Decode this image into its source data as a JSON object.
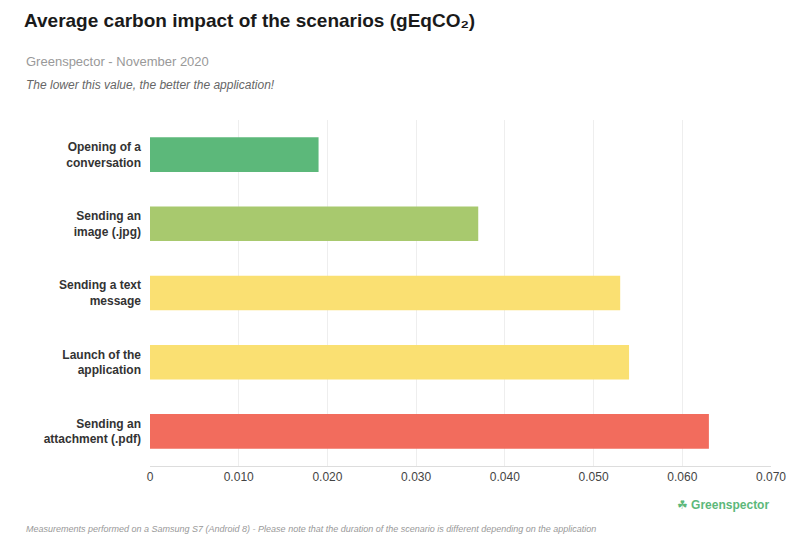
{
  "chart_data": {
    "type": "bar",
    "orientation": "horizontal",
    "title": "Average carbon impact of the scenarios (gEqCO₂)",
    "subtitle": "Greenspector - November 2020",
    "annotations": [
      "The lower this value, the better the application!",
      "Measurements performed on a Samsung S7 (Android 8) - Please note that the duration of the scenario is different depending on the application",
      "☘",
      "Greenspector"
    ],
    "categories": [
      "Opening of a\nconversation",
      "Sending an\nimage (.jpg)",
      "Sending a text\nmessage",
      "Launch of the\napplication",
      "Sending an\nattachment (.pdf)"
    ],
    "values": [
      0.019,
      0.037,
      0.053,
      0.054,
      0.063
    ],
    "colors": [
      "#5CB87A",
      "#A8C96E",
      "#FAE072",
      "#FAE072",
      "#F26C5D"
    ],
    "xlim": [
      0,
      0.07
    ],
    "xticks": [
      0,
      {
        "value": 0.01,
        "label": "0.010"
      },
      {
        "value": 0.02,
        "label": "0.020"
      },
      {
        "value": 0.03,
        "label": "0.030"
      },
      {
        "value": 0.04,
        "label": "0.040"
      },
      {
        "value": 0.05,
        "label": "0.050"
      },
      {
        "value": 0.06,
        "label": "0.060"
      },
      {
        "value": 0.07,
        "label": "0.070"
      }
    ],
    "grid": true
  }
}
